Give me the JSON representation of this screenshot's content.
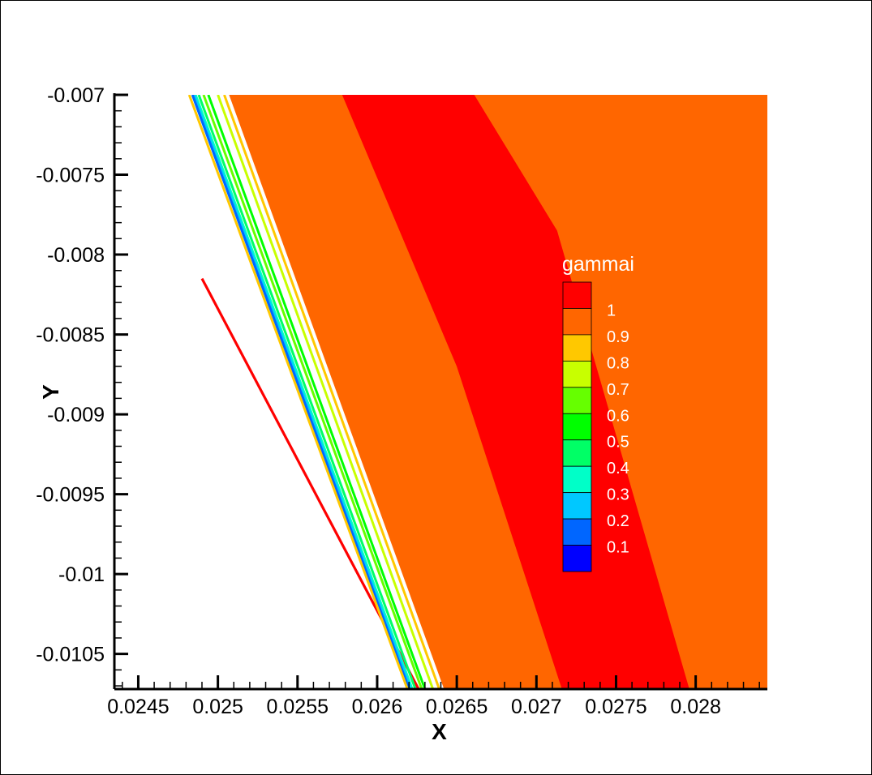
{
  "chart_data": {
    "type": "contour",
    "variable": "gammai",
    "xlabel": "X",
    "ylabel": "Y",
    "xlim": [
      0.02435,
      0.02845
    ],
    "ylim": [
      -0.01072,
      -0.007
    ],
    "x_ticks": [
      {
        "value": 0.0245,
        "label": "0.0245"
      },
      {
        "value": 0.025,
        "label": "0.025"
      },
      {
        "value": 0.0255,
        "label": "0.0255"
      },
      {
        "value": 0.026,
        "label": "0.026"
      },
      {
        "value": 0.0265,
        "label": "0.0265"
      },
      {
        "value": 0.027,
        "label": "0.027"
      },
      {
        "value": 0.0275,
        "label": "0.0275"
      },
      {
        "value": 0.028,
        "label": "0.028"
      }
    ],
    "y_ticks": [
      {
        "value": -0.007,
        "label": "-0.007"
      },
      {
        "value": -0.0075,
        "label": "-0.0075"
      },
      {
        "value": -0.008,
        "label": "-0.008"
      },
      {
        "value": -0.0085,
        "label": "-0.0085"
      },
      {
        "value": -0.009,
        "label": "-0.009"
      },
      {
        "value": -0.0095,
        "label": "-0.0095"
      },
      {
        "value": -0.01,
        "label": "-0.01"
      },
      {
        "value": -0.0105,
        "label": "-0.0105"
      }
    ],
    "legend": {
      "title": "gammai",
      "placement": "right-center",
      "levels": [
        {
          "label": "1",
          "color": "#ff0000"
        },
        {
          "label": "0.9",
          "color": "#ff6600"
        },
        {
          "label": "0.8",
          "color": "#ffc800"
        },
        {
          "label": "0.7",
          "color": "#c8ff00"
        },
        {
          "label": "0.6",
          "color": "#66ff00"
        },
        {
          "label": "0.5",
          "color": "#00ff00"
        },
        {
          "label": "0.4",
          "color": "#00ff66"
        },
        {
          "label": "0.3",
          "color": "#00ffc8"
        },
        {
          "label": "0.2",
          "color": "#00c8ff"
        },
        {
          "label": "0.1",
          "color": "#0066ff"
        },
        {
          "label": "",
          "color": "#0000ff"
        }
      ]
    },
    "regions": [
      {
        "name": "domain-fill",
        "level": 0.95,
        "color": "#ff6600",
        "polygon": [
          [
            0.02507,
            -0.007
          ],
          [
            0.02845,
            -0.007
          ],
          [
            0.02845,
            -0.01072
          ],
          [
            0.02642,
            -0.01072
          ]
        ]
      },
      {
        "name": "high-band",
        "level": 1.0,
        "color": "#ff0000",
        "polygon": [
          [
            0.02578,
            -0.007
          ],
          [
            0.02661,
            -0.007
          ],
          [
            0.02713,
            -0.00785
          ],
          [
            0.02796,
            -0.01072
          ],
          [
            0.02716,
            -0.01072
          ],
          [
            0.0265,
            -0.0087
          ]
        ]
      }
    ],
    "interface_layers": [
      {
        "level": 0.8,
        "color": "#ffc800",
        "from": [
          0.02504,
          -0.007
        ],
        "to": [
          0.02639,
          -0.01072
        ]
      },
      {
        "level": 0.7,
        "color": "#c8ff00",
        "from": [
          0.025,
          -0.007
        ],
        "to": [
          0.02635,
          -0.01072
        ]
      },
      {
        "level": 0.5,
        "color": "#00ff00",
        "from": [
          0.02494,
          -0.007
        ],
        "to": [
          0.0263,
          -0.01072
        ]
      },
      {
        "level": 0.6,
        "color": "#66ff00",
        "from": [
          0.02491,
          -0.007
        ],
        "to": [
          0.02628,
          -0.01072
        ]
      },
      {
        "level": 1.0,
        "color": "#ff0000",
        "from": [
          0.0249,
          -0.00815
        ],
        "to": [
          0.02626,
          -0.01072
        ]
      },
      {
        "level": 0.4,
        "color": "#00ff66",
        "from": [
          0.02488,
          -0.007
        ],
        "to": [
          0.02624,
          -0.01072
        ]
      },
      {
        "level": 0.3,
        "color": "#00ffc8",
        "from": [
          0.02486,
          -0.007
        ],
        "to": [
          0.02622,
          -0.01072
        ]
      },
      {
        "level": 0.2,
        "color": "#00c8ff",
        "from": [
          0.02485,
          -0.007
        ],
        "to": [
          0.02621,
          -0.01072
        ]
      },
      {
        "level": 0.1,
        "color": "#0066ff",
        "from": [
          0.02484,
          -0.007
        ],
        "to": [
          0.0262,
          -0.01072
        ]
      },
      {
        "level": 0.8,
        "color": "#ffc800",
        "from": [
          0.02482,
          -0.007
        ],
        "to": [
          0.02619,
          -0.01072
        ]
      }
    ],
    "grid": false
  }
}
